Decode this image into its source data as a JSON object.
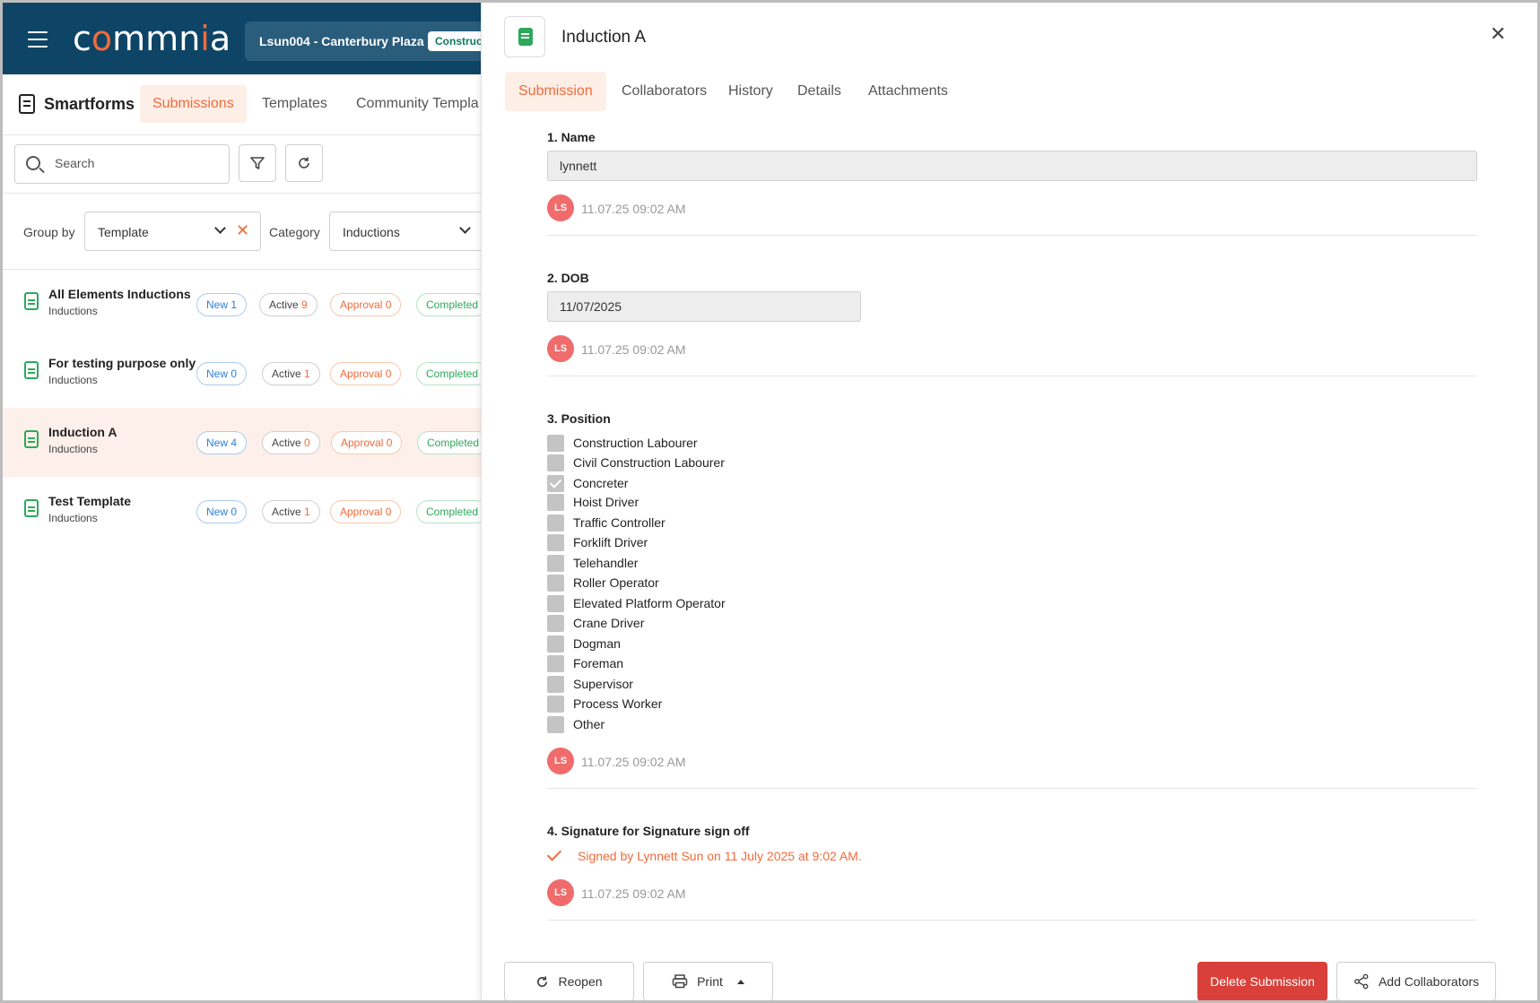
{
  "app": {
    "logo": "commnia",
    "project_name": "Lsun004 - Canterbury Plaza",
    "project_status": "Construct"
  },
  "subnav": {
    "title": "Smartforms",
    "tabs": [
      "Submissions",
      "Templates",
      "Community Templa"
    ],
    "active_tab": "Submissions"
  },
  "search": {
    "placeholder": "Search"
  },
  "filters": {
    "group_by_label": "Group by",
    "group_by_value": "Template",
    "category_label": "Category",
    "category_value": "Inductions"
  },
  "templates": [
    {
      "title": "All Elements Inductions",
      "category": "Inductions",
      "new_label": "New",
      "new": "1",
      "active_label": "Active",
      "active": "9",
      "approval_label": "Approval",
      "approval": "0",
      "completed_label": "Completed"
    },
    {
      "title": "For testing purpose only",
      "category": "Inductions",
      "new_label": "New",
      "new": "0",
      "active_label": "Active",
      "active": "1",
      "approval_label": "Approval",
      "approval": "0",
      "completed_label": "Completed"
    },
    {
      "title": "Induction A",
      "category": "Inductions",
      "new_label": "New",
      "new": "4",
      "active_label": "Active",
      "active": "0",
      "approval_label": "Approval",
      "approval": "0",
      "completed_label": "Completed"
    },
    {
      "title": "Test Template",
      "category": "Inductions",
      "new_label": "New",
      "new": "0",
      "active_label": "Active",
      "active": "1",
      "approval_label": "Approval",
      "approval": "0",
      "completed_label": "Completed"
    }
  ],
  "panel": {
    "title": "Induction A",
    "tabs": [
      "Submission",
      "Collaborators",
      "History",
      "Details",
      "Attachments"
    ],
    "active_tab": "Submission"
  },
  "form": {
    "q1": {
      "label": "1. Name",
      "value": "lynnett",
      "avatar": "LS",
      "time": "11.07.25 09:02 AM"
    },
    "q2": {
      "label": "2. DOB",
      "value": "11/07/2025",
      "avatar": "LS",
      "time": "11.07.25 09:02 AM"
    },
    "q3": {
      "label": "3. Position",
      "options": [
        {
          "label": "Construction Labourer",
          "checked": false
        },
        {
          "label": "Civil Construction Labourer",
          "checked": false
        },
        {
          "label": "Concreter",
          "checked": true
        },
        {
          "label": "Hoist Driver",
          "checked": false
        },
        {
          "label": "Traffic Controller",
          "checked": false
        },
        {
          "label": "Forklift Driver",
          "checked": false
        },
        {
          "label": "Telehandler",
          "checked": false
        },
        {
          "label": "Roller Operator",
          "checked": false
        },
        {
          "label": "Elevated Platform Operator",
          "checked": false
        },
        {
          "label": "Crane Driver",
          "checked": false
        },
        {
          "label": "Dogman",
          "checked": false
        },
        {
          "label": "Foreman",
          "checked": false
        },
        {
          "label": "Supervisor",
          "checked": false
        },
        {
          "label": "Process Worker",
          "checked": false
        },
        {
          "label": "Other",
          "checked": false
        }
      ],
      "avatar": "LS",
      "time": "11.07.25 09:02 AM"
    },
    "q4": {
      "label": "4. Signature for Signature sign off",
      "signed_text": "Signed by Lynnett Sun on 11 July 2025 at 9:02 AM.",
      "avatar": "LS",
      "time": "11.07.25 09:02 AM"
    }
  },
  "footer": {
    "reopen": "Reopen",
    "print": "Print",
    "delete": "Delete Submission",
    "add_collaborators": "Add Collaborators"
  },
  "colors": {
    "brand_dark": "#0e4566",
    "accent": "#f26b3a",
    "success": "#2ea85b",
    "danger": "#d9403a",
    "info": "#2f7fd6"
  }
}
